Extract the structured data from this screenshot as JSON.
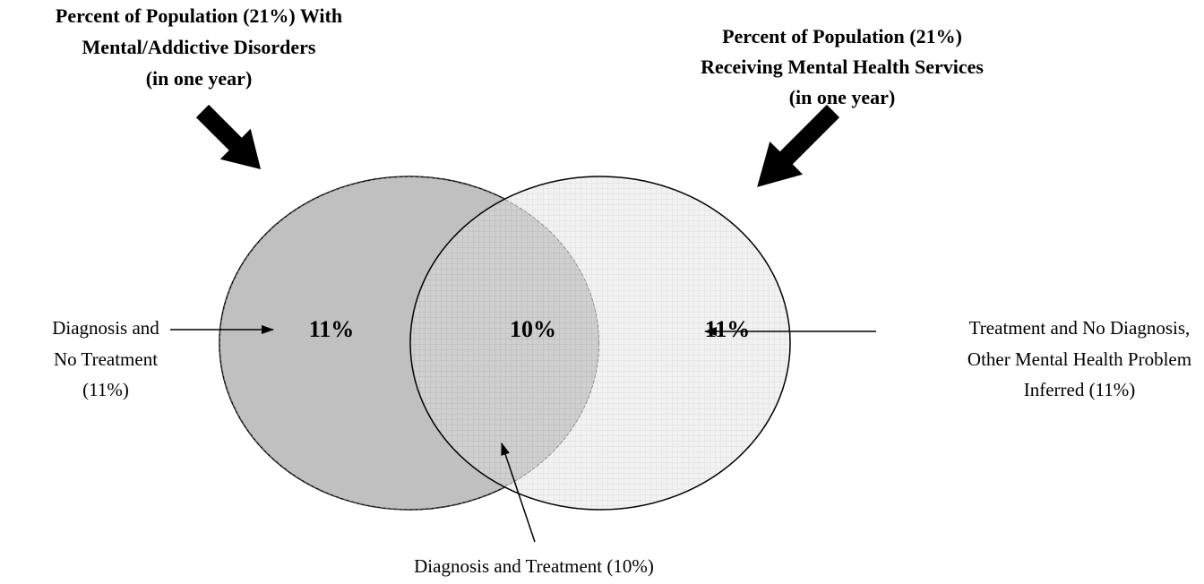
{
  "left_title": {
    "lines": [
      "Percent of Population (21%) With",
      "Mental/Addictive Disorders",
      "(in one year)"
    ]
  },
  "right_title": {
    "lines": [
      "Percent of Population (21%)",
      "Receiving Mental Health Services",
      "(in one year)"
    ]
  },
  "regions": {
    "left": "11%",
    "overlap": "10%",
    "right": "11%"
  },
  "annotations": {
    "left": {
      "lines": [
        "Diagnosis and",
        "No Treatment",
        "(11%)"
      ]
    },
    "right": {
      "lines": [
        "Treatment and No Diagnosis,",
        "Other Mental Health Problem",
        "Inferred (11%)"
      ]
    },
    "bottom": {
      "lines": [
        "Diagnosis and Treatment (10%)"
      ]
    }
  }
}
